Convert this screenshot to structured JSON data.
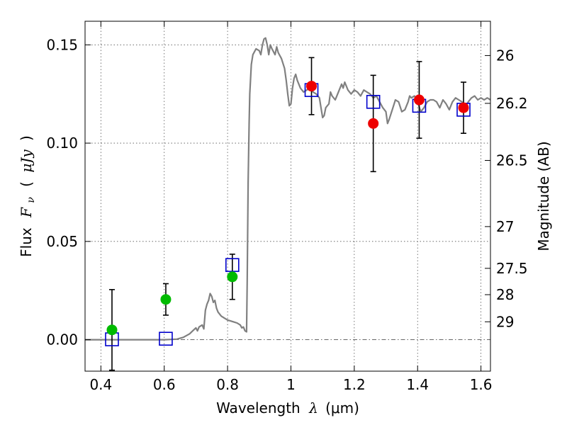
{
  "chart_data": {
    "type": "scatter",
    "xlabel_text": "Wavelength",
    "xlabel_symbol": "λ",
    "xlabel_unit": "(μm)",
    "ylabel_text": "Flux",
    "ylabel_symbol_main": "F",
    "ylabel_symbol_sub": "ν",
    "ylabel_unit_open": "(",
    "ylabel_unit": "μJy",
    "ylabel_unit_close": ")",
    "y2label": "Magnitude (AB)",
    "xlim": [
      0.35,
      1.63
    ],
    "ylim": [
      -0.016,
      0.162
    ],
    "grid": true,
    "zero_line": true,
    "x_ticks": [
      {
        "v": 0.4,
        "label": "0.4"
      },
      {
        "v": 0.6,
        "label": "0.6"
      },
      {
        "v": 0.8,
        "label": "0.8"
      },
      {
        "v": 1.0,
        "label": "1"
      },
      {
        "v": 1.2,
        "label": "1.2"
      },
      {
        "v": 1.4,
        "label": "1.4"
      },
      {
        "v": 1.6,
        "label": "1.6"
      }
    ],
    "y_ticks": [
      {
        "v": 0.0,
        "label": "0.00"
      },
      {
        "v": 0.05,
        "label": "0.05"
      },
      {
        "v": 0.1,
        "label": "0.10"
      },
      {
        "v": 0.15,
        "label": "0.15"
      }
    ],
    "y2_ticks": [
      {
        "mag": 26,
        "label": "26"
      },
      {
        "mag": 26.2,
        "label": "26.2"
      },
      {
        "mag": 26.5,
        "label": "26.5"
      },
      {
        "mag": 27,
        "label": "27"
      },
      {
        "mag": 27.5,
        "label": "27.5"
      },
      {
        "mag": 28,
        "label": "28"
      },
      {
        "mag": 29,
        "label": "29"
      }
    ],
    "series": [
      {
        "kind": "line",
        "color": "#808080",
        "points": [
          [
            0.35,
            0.0
          ],
          [
            0.6,
            0.0
          ],
          [
            0.64,
            0.0003
          ],
          [
            0.66,
            0.0012
          ],
          [
            0.68,
            0.003
          ],
          [
            0.69,
            0.0045
          ],
          [
            0.7,
            0.006
          ],
          [
            0.705,
            0.0045
          ],
          [
            0.71,
            0.0065
          ],
          [
            0.72,
            0.0075
          ],
          [
            0.725,
            0.0055
          ],
          [
            0.73,
            0.015
          ],
          [
            0.735,
            0.018
          ],
          [
            0.74,
            0.02
          ],
          [
            0.745,
            0.0235
          ],
          [
            0.75,
            0.022
          ],
          [
            0.755,
            0.019
          ],
          [
            0.76,
            0.02
          ],
          [
            0.765,
            0.016
          ],
          [
            0.77,
            0.014
          ],
          [
            0.78,
            0.012
          ],
          [
            0.79,
            0.011
          ],
          [
            0.8,
            0.01
          ],
          [
            0.81,
            0.0095
          ],
          [
            0.82,
            0.009
          ],
          [
            0.83,
            0.0085
          ],
          [
            0.84,
            0.0075
          ],
          [
            0.845,
            0.006
          ],
          [
            0.85,
            0.0065
          ],
          [
            0.855,
            0.0045
          ],
          [
            0.86,
            0.004
          ],
          [
            0.862,
            0.03
          ],
          [
            0.865,
            0.08
          ],
          [
            0.868,
            0.11
          ],
          [
            0.87,
            0.125
          ],
          [
            0.875,
            0.14
          ],
          [
            0.88,
            0.145
          ],
          [
            0.89,
            0.148
          ],
          [
            0.9,
            0.147
          ],
          [
            0.905,
            0.145
          ],
          [
            0.91,
            0.15
          ],
          [
            0.915,
            0.153
          ],
          [
            0.92,
            0.1535
          ],
          [
            0.925,
            0.15
          ],
          [
            0.93,
            0.145
          ],
          [
            0.935,
            0.15
          ],
          [
            0.94,
            0.148
          ],
          [
            0.95,
            0.145
          ],
          [
            0.955,
            0.149
          ],
          [
            0.96,
            0.146
          ],
          [
            0.97,
            0.143
          ],
          [
            0.98,
            0.138
          ],
          [
            0.985,
            0.132
          ],
          [
            0.99,
            0.125
          ],
          [
            0.995,
            0.119
          ],
          [
            1.0,
            0.12
          ],
          [
            1.005,
            0.128
          ],
          [
            1.01,
            0.133
          ],
          [
            1.015,
            0.135
          ],
          [
            1.02,
            0.132
          ],
          [
            1.03,
            0.128
          ],
          [
            1.04,
            0.126
          ],
          [
            1.05,
            0.127
          ],
          [
            1.06,
            0.128
          ],
          [
            1.07,
            0.126
          ],
          [
            1.08,
            0.125
          ],
          [
            1.09,
            0.123
          ],
          [
            1.095,
            0.118
          ],
          [
            1.1,
            0.113
          ],
          [
            1.105,
            0.114
          ],
          [
            1.11,
            0.118
          ],
          [
            1.12,
            0.12
          ],
          [
            1.125,
            0.126
          ],
          [
            1.13,
            0.124
          ],
          [
            1.14,
            0.122
          ],
          [
            1.15,
            0.126
          ],
          [
            1.16,
            0.13
          ],
          [
            1.165,
            0.128
          ],
          [
            1.17,
            0.131
          ],
          [
            1.18,
            0.127
          ],
          [
            1.19,
            0.125
          ],
          [
            1.2,
            0.127
          ],
          [
            1.21,
            0.126
          ],
          [
            1.22,
            0.124
          ],
          [
            1.23,
            0.127
          ],
          [
            1.24,
            0.126
          ],
          [
            1.25,
            0.125
          ],
          [
            1.26,
            0.123
          ],
          [
            1.27,
            0.124
          ],
          [
            1.28,
            0.121
          ],
          [
            1.29,
            0.118
          ],
          [
            1.3,
            0.116
          ],
          [
            1.305,
            0.11
          ],
          [
            1.31,
            0.112
          ],
          [
            1.32,
            0.117
          ],
          [
            1.33,
            0.122
          ],
          [
            1.34,
            0.121
          ],
          [
            1.35,
            0.116
          ],
          [
            1.36,
            0.117
          ],
          [
            1.37,
            0.121
          ],
          [
            1.375,
            0.124
          ],
          [
            1.38,
            0.123
          ],
          [
            1.39,
            0.124
          ],
          [
            1.4,
            0.121
          ],
          [
            1.41,
            0.116
          ],
          [
            1.42,
            0.118
          ],
          [
            1.43,
            0.121
          ],
          [
            1.44,
            0.122
          ],
          [
            1.45,
            0.122
          ],
          [
            1.46,
            0.121
          ],
          [
            1.47,
            0.118
          ],
          [
            1.48,
            0.122
          ],
          [
            1.49,
            0.12
          ],
          [
            1.5,
            0.117
          ],
          [
            1.51,
            0.121
          ],
          [
            1.52,
            0.123
          ],
          [
            1.53,
            0.122
          ],
          [
            1.54,
            0.121
          ],
          [
            1.55,
            0.118
          ],
          [
            1.56,
            0.121
          ],
          [
            1.57,
            0.123
          ],
          [
            1.58,
            0.124
          ],
          [
            1.59,
            0.122
          ],
          [
            1.6,
            0.123
          ],
          [
            1.61,
            0.122
          ],
          [
            1.62,
            0.123
          ],
          [
            1.63,
            0.122
          ]
        ]
      },
      {
        "kind": "square",
        "color": "#0000cc",
        "points": [
          {
            "x": 0.435,
            "y": 0.0002
          },
          {
            "x": 0.605,
            "y": 0.0005
          },
          {
            "x": 0.815,
            "y": 0.038
          },
          {
            "x": 1.065,
            "y": 0.127
          },
          {
            "x": 1.26,
            "y": 0.121
          },
          {
            "x": 1.405,
            "y": 0.119
          },
          {
            "x": 1.545,
            "y": 0.117
          }
        ]
      },
      {
        "kind": "circle",
        "points": [
          {
            "x": 0.435,
            "y": 0.005,
            "err": 0.0205,
            "color": "#00bb00"
          },
          {
            "x": 0.605,
            "y": 0.0205,
            "err": 0.008,
            "color": "#00bb00"
          },
          {
            "x": 0.815,
            "y": 0.032,
            "err": 0.0115,
            "color": "#00bb00"
          },
          {
            "x": 1.065,
            "y": 0.129,
            "err": 0.0145,
            "color": "#ee0000"
          },
          {
            "x": 1.26,
            "y": 0.11,
            "err": 0.0245,
            "color": "#ee0000"
          },
          {
            "x": 1.405,
            "y": 0.122,
            "err": 0.0195,
            "color": "#ee0000"
          },
          {
            "x": 1.545,
            "y": 0.118,
            "err": 0.013,
            "color": "#ee0000"
          }
        ]
      }
    ]
  }
}
